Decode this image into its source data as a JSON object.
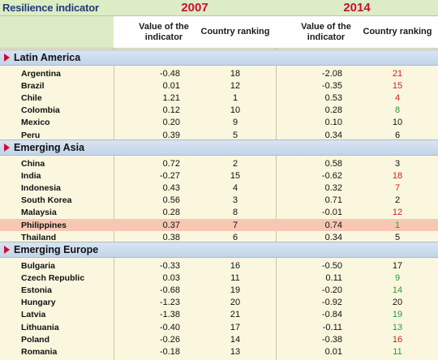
{
  "header": {
    "title": "Resilience indicator",
    "years": [
      "2007",
      "2014"
    ],
    "columns": [
      "Value of the indicator",
      "Country ranking",
      "Value of the indicator",
      "Country ranking"
    ]
  },
  "regions": [
    {
      "name": "Latin America",
      "rows": [
        {
          "country": "Argentina",
          "v2007": "-0.48",
          "r2007": "18",
          "v2014": "-2.08",
          "r2014": "21",
          "change": "worse"
        },
        {
          "country": "Brazil",
          "v2007": "0.01",
          "r2007": "12",
          "v2014": "-0.35",
          "r2014": "15",
          "change": "worse"
        },
        {
          "country": "Chile",
          "v2007": "1.21",
          "r2007": "1",
          "v2014": "0.53",
          "r2014": "4",
          "change": "worse"
        },
        {
          "country": "Colombia",
          "v2007": "0.12",
          "r2007": "10",
          "v2014": "0.28",
          "r2014": "8",
          "change": "better"
        },
        {
          "country": "Mexico",
          "v2007": "0.20",
          "r2007": "9",
          "v2014": "0.10",
          "r2014": "10",
          "change": "none"
        },
        {
          "country": "Peru",
          "v2007": "0.39",
          "r2007": "5",
          "v2014": "0.34",
          "r2014": "6",
          "change": "none"
        }
      ]
    },
    {
      "name": "Emerging Asia",
      "rows": [
        {
          "country": "China",
          "v2007": "0.72",
          "r2007": "2",
          "v2014": "0.58",
          "r2014": "3",
          "change": "none"
        },
        {
          "country": "India",
          "v2007": "-0.27",
          "r2007": "15",
          "v2014": "-0.62",
          "r2014": "18",
          "change": "worse"
        },
        {
          "country": "Indonesia",
          "v2007": "0.43",
          "r2007": "4",
          "v2014": "0.32",
          "r2014": "7",
          "change": "worse"
        },
        {
          "country": "South Korea",
          "v2007": "0.56",
          "r2007": "3",
          "v2014": "0.71",
          "r2014": "2",
          "change": "none"
        },
        {
          "country": "Malaysia",
          "v2007": "0.28",
          "r2007": "8",
          "v2014": "-0.01",
          "r2014": "12",
          "change": "worse"
        },
        {
          "country": "Philippines",
          "v2007": "0.37",
          "r2007": "7",
          "v2014": "0.74",
          "r2014": "1",
          "change": "better",
          "highlight": true
        },
        {
          "country": "Thailand",
          "v2007": "0.38",
          "r2007": "6",
          "v2014": "0.34",
          "r2014": "5",
          "change": "none"
        }
      ]
    },
    {
      "name": "Emerging Europe",
      "rows": [
        {
          "country": "Bulgaria",
          "v2007": "-0.33",
          "r2007": "16",
          "v2014": "-0.50",
          "r2014": "17",
          "change": "none"
        },
        {
          "country": "Czech Republic",
          "v2007": "0.03",
          "r2007": "11",
          "v2014": "0.11",
          "r2014": "9",
          "change": "better"
        },
        {
          "country": "Estonia",
          "v2007": "-0.68",
          "r2007": "19",
          "v2014": "-0.20",
          "r2014": "14",
          "change": "better"
        },
        {
          "country": "Hungary",
          "v2007": "-1.23",
          "r2007": "20",
          "v2014": "-0.92",
          "r2014": "20",
          "change": "none"
        },
        {
          "country": "Latvia",
          "v2007": "-1.38",
          "r2007": "21",
          "v2014": "-0.84",
          "r2014": "19",
          "change": "better"
        },
        {
          "country": "Lithuania",
          "v2007": "-0.40",
          "r2007": "17",
          "v2014": "-0.11",
          "r2014": "13",
          "change": "better"
        },
        {
          "country": "Poland",
          "v2007": "-0.26",
          "r2007": "14",
          "v2014": "-0.38",
          "r2014": "16",
          "change": "worse"
        },
        {
          "country": "Romania",
          "v2007": "-0.18",
          "r2007": "13",
          "v2014": "0.01",
          "r2014": "11",
          "change": "better"
        }
      ]
    }
  ],
  "colors": {
    "year": "#c8102e",
    "title": "#1e3b7a",
    "worse": "#d32020",
    "better": "#2a9a3a",
    "highlight": "#f7c7b4"
  }
}
